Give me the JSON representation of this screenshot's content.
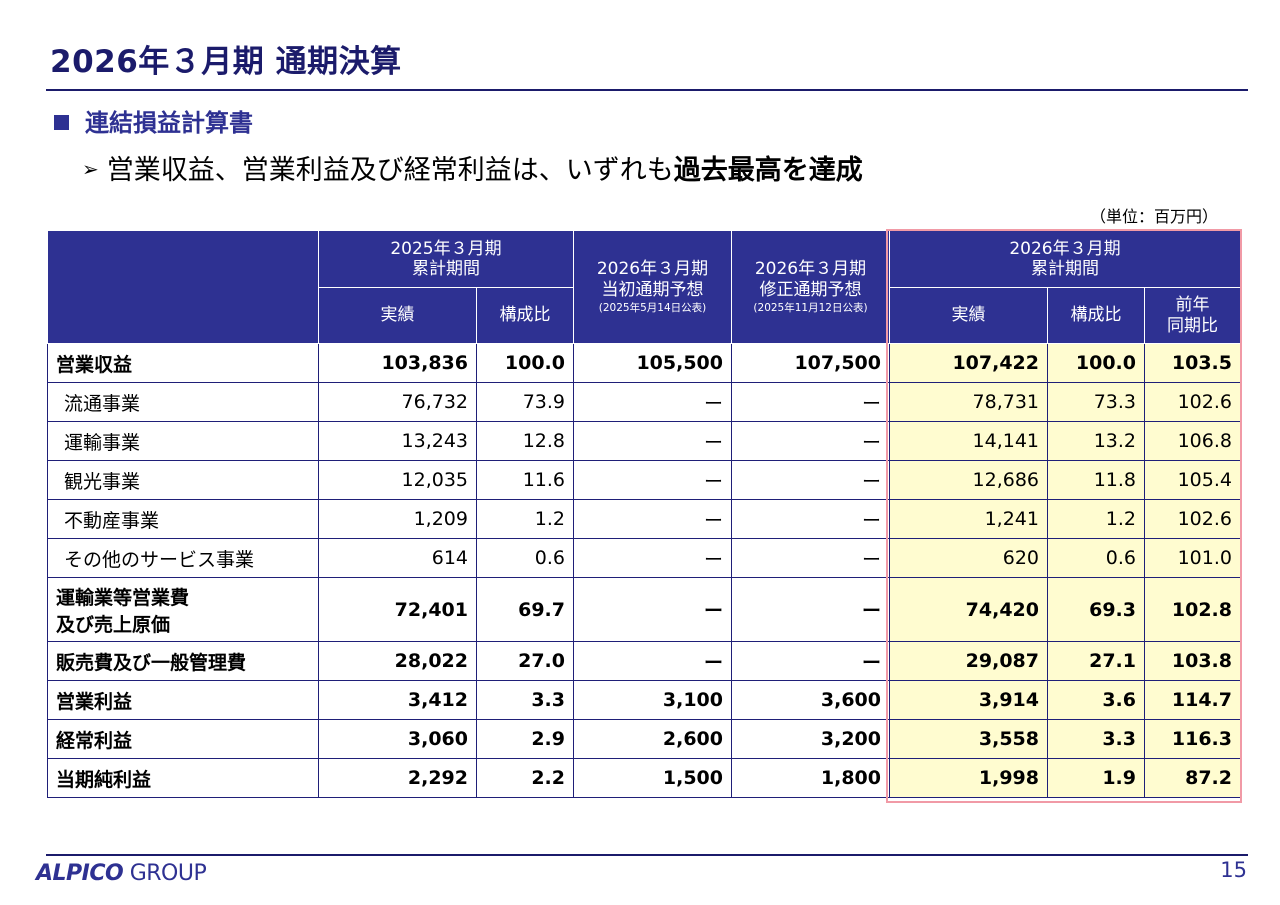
{
  "title": "2026年３月期 通期決算",
  "section": "連結損益計算書",
  "bullet": {
    "normal": "営業収益、営業利益及び経常利益は、いずれも",
    "emphasis": "過去最高を達成"
  },
  "unit": "（単位：百万円）",
  "headers": {
    "fy2025_period": "2025年３月期",
    "fy2025_sub": "累計期間",
    "fy2026_initial": "2026年３月期",
    "fy2026_initial_sub": "当初通期予想",
    "fy2026_initial_note": "(2025年5月14日公表)",
    "fy2026_revised": "2026年３月期",
    "fy2026_revised_sub": "修正通期予想",
    "fy2026_revised_note": "(2025年11月12日公表)",
    "fy2026_period": "2026年３月期",
    "fy2026_sub": "累計期間",
    "actual": "実績",
    "ratio": "構成比",
    "yoy_1": "前年",
    "yoy_2": "同期比"
  },
  "rows": [
    {
      "label": "営業収益",
      "a25": "103,836",
      "r25": "100.0",
      "init": "105,500",
      "rev": "107,500",
      "a26": "107,422",
      "r26": "100.0",
      "yoy": "103.5"
    },
    {
      "label": "流通事業",
      "a25": "76,732",
      "r25": "73.9",
      "init": "ー",
      "rev": "ー",
      "a26": "78,731",
      "r26": "73.3",
      "yoy": "102.6"
    },
    {
      "label": "運輸事業",
      "a25": "13,243",
      "r25": "12.8",
      "init": "ー",
      "rev": "ー",
      "a26": "14,141",
      "r26": "13.2",
      "yoy": "106.8"
    },
    {
      "label": "観光事業",
      "a25": "12,035",
      "r25": "11.6",
      "init": "ー",
      "rev": "ー",
      "a26": "12,686",
      "r26": "11.8",
      "yoy": "105.4"
    },
    {
      "label": "不動産事業",
      "a25": "1,209",
      "r25": "1.2",
      "init": "ー",
      "rev": "ー",
      "a26": "1,241",
      "r26": "1.2",
      "yoy": "102.6"
    },
    {
      "label": "その他のサービス事業",
      "a25": "614",
      "r25": "0.6",
      "init": "ー",
      "rev": "ー",
      "a26": "620",
      "r26": "0.6",
      "yoy": "101.0"
    },
    {
      "label": "運輸業等営業費",
      "label2": "及び売上原価",
      "a25": "72,401",
      "r25": "69.7",
      "init": "ー",
      "rev": "ー",
      "a26": "74,420",
      "r26": "69.3",
      "yoy": "102.8"
    },
    {
      "label": "販売費及び一般管理費",
      "a25": "28,022",
      "r25": "27.0",
      "init": "ー",
      "rev": "ー",
      "a26": "29,087",
      "r26": "27.1",
      "yoy": "103.8"
    },
    {
      "label": "営業利益",
      "a25": "3,412",
      "r25": "3.3",
      "init": "3,100",
      "rev": "3,600",
      "a26": "3,914",
      "r26": "3.6",
      "yoy": "114.7"
    },
    {
      "label": "経常利益",
      "a25": "3,060",
      "r25": "2.9",
      "init": "2,600",
      "rev": "3,200",
      "a26": "3,558",
      "r26": "3.3",
      "yoy": "116.3"
    },
    {
      "label": "当期純利益",
      "a25": "2,292",
      "r25": "2.2",
      "init": "1,500",
      "rev": "1,800",
      "a26": "1,998",
      "r26": "1.9",
      "yoy": "87.2"
    }
  ],
  "footer": {
    "logo_mark": "ALPICO",
    "logo_group": "GROUP",
    "page": "15"
  }
}
